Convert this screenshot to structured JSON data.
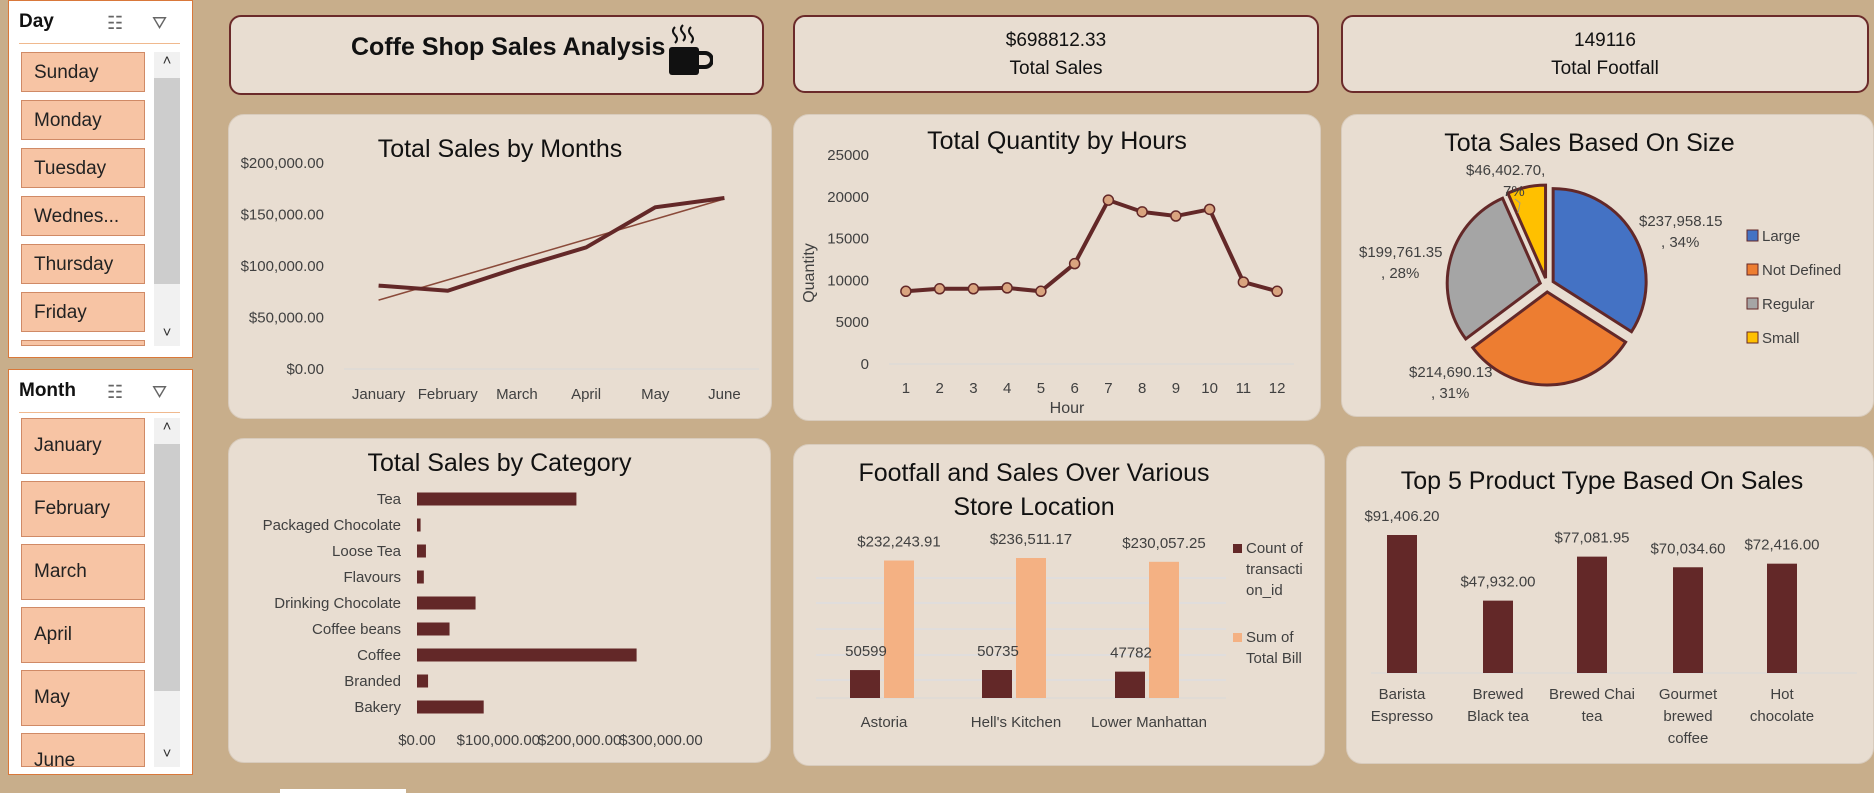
{
  "slicers": {
    "day": {
      "title": "Day",
      "items": [
        "Sunday",
        "Monday",
        "Tuesday",
        "Wednes...",
        "Thursday",
        "Friday",
        ""
      ]
    },
    "month": {
      "title": "Month",
      "items": [
        "January",
        "February",
        "March",
        "April",
        "May",
        "June"
      ]
    }
  },
  "kpis": {
    "title": "Coffe Shop Sales Analysis",
    "total_sales_value": "$698812.33",
    "total_sales_label": "Total Sales",
    "total_footfall_value": "149116",
    "total_footfall_label": "Total Footfall"
  },
  "colors": {
    "maroon": "#632828",
    "peach": "#f4b183",
    "large": "#4472c4",
    "not_defined": "#ed7d31",
    "regular": "#a5a5a5",
    "small": "#ffc000"
  },
  "icons": {
    "coffee": "coffee-cup-icon",
    "multiselect": "multi-select-icon",
    "clear_filter": "clear-filter-icon"
  },
  "chart_data": [
    {
      "id": "sales_by_months",
      "type": "line",
      "title": "Total Sales by Months",
      "categories": [
        "January",
        "February",
        "March",
        "April",
        "May",
        "June"
      ],
      "values": [
        81000,
        76000,
        98000,
        118000,
        157000,
        166000
      ],
      "trendline": true,
      "y_ticks": [
        "$0.00",
        "$50,000.00",
        "$100,000.00",
        "$150,000.00",
        "$200,000.00"
      ],
      "ylim": [
        0,
        200000
      ]
    },
    {
      "id": "quantity_by_hours",
      "type": "line",
      "title": "Total Quantity by Hours",
      "xlabel": "Hour",
      "ylabel": "Quantity",
      "categories": [
        "1",
        "2",
        "3",
        "4",
        "5",
        "6",
        "7",
        "8",
        "9",
        "10",
        "11",
        "12"
      ],
      "values": [
        8700,
        9000,
        9000,
        9100,
        8700,
        12000,
        19600,
        18200,
        17700,
        18500,
        9800,
        8700
      ],
      "y_ticks": [
        "0",
        "5000",
        "10000",
        "15000",
        "20000",
        "25000"
      ],
      "ylim": [
        0,
        25000
      ]
    },
    {
      "id": "sales_by_size",
      "type": "pie",
      "title": "Tota Sales Based On Size",
      "legend_position": "right",
      "slices": [
        {
          "name": "Large",
          "value": 237958.15,
          "label_value": "$237,958.15",
          "label_pct": ", 34%"
        },
        {
          "name": "Not Defined",
          "value": 214690.13,
          "label_value": "$214,690.13",
          "label_pct": ", 31%"
        },
        {
          "name": "Regular",
          "value": 199761.35,
          "label_value": "$199,761.35",
          "label_pct": ", 28%"
        },
        {
          "name": "Small",
          "value": 46402.7,
          "label_value": "$46,402.70,",
          "label_pct": "7%"
        }
      ]
    },
    {
      "id": "sales_by_category",
      "type": "bar",
      "orientation": "horizontal",
      "title": "Total Sales by Category",
      "categories": [
        "Tea",
        "Packaged Chocolate",
        "Loose Tea",
        "Flavours",
        "Drinking Chocolate",
        "Coffee beans",
        "Coffee",
        "Branded",
        "Bakery"
      ],
      "values": [
        196000,
        4400,
        11000,
        8400,
        72000,
        40000,
        270000,
        13600,
        82000
      ],
      "x_ticks": [
        "$0.00",
        "$100,000.00",
        "$200,000.00",
        "$300,000.00"
      ],
      "xlim": [
        0,
        300000
      ]
    },
    {
      "id": "footfall_sales_location",
      "type": "bar",
      "title_line1": "Footfall and Sales Over Various",
      "title_line2": "Store Location",
      "categories": [
        "Astoria",
        "Hell's Kitchen",
        "Lower Manhattan"
      ],
      "series": [
        {
          "name": "Count of transaction_id",
          "legend_lines": [
            "Count of",
            "transacti",
            "on_id"
          ],
          "values": [
            50599,
            50735,
            47782
          ]
        },
        {
          "name": "Sum of Total Bill",
          "legend_lines": [
            "Sum of",
            "Total Bill"
          ],
          "values": [
            232243.91,
            236511.17,
            230057.25
          ],
          "labels": [
            "$232,243.91",
            "$236,511.17",
            "$230,057.25"
          ]
        }
      ],
      "legend_position": "right"
    },
    {
      "id": "top5_product_types",
      "type": "bar",
      "title": "Top 5 Product Type Based On Sales",
      "categories": [
        [
          "Barista",
          "Espresso"
        ],
        [
          "Brewed",
          "Black tea"
        ],
        [
          "Brewed Chai",
          "tea"
        ],
        [
          "Gourmet",
          "brewed",
          "coffee"
        ],
        [
          "Hot",
          "chocolate"
        ]
      ],
      "values": [
        91406.2,
        47932.0,
        77081.95,
        70034.6,
        72416.0
      ],
      "labels": [
        "$91,406.20",
        "$47,932.00",
        "$77,081.95",
        "$70,034.60",
        "$72,416.00"
      ]
    }
  ]
}
